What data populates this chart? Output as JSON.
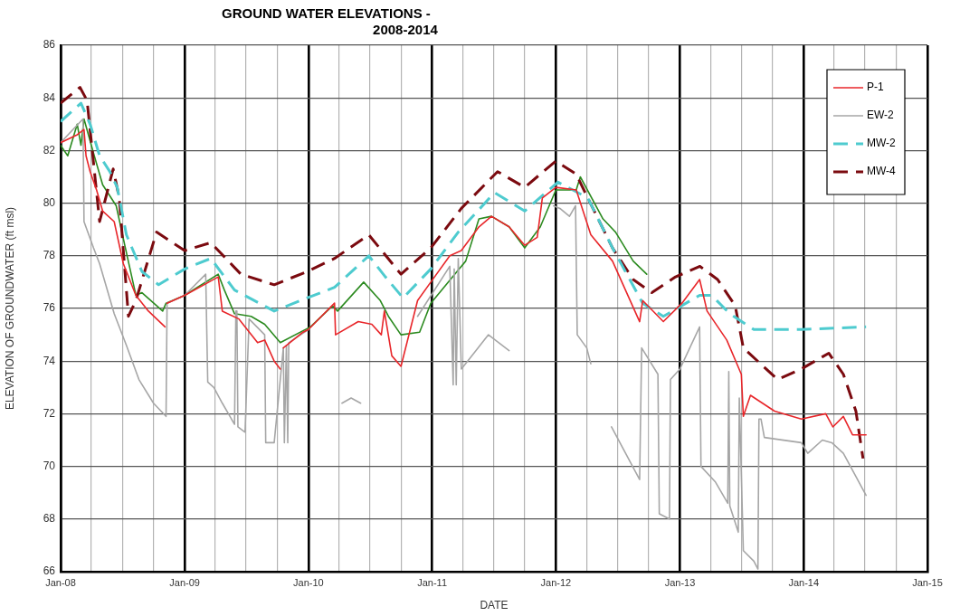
{
  "chart_data": {
    "type": "line",
    "title": "GROUND WATER ELEVATIONS -\n2008-2014",
    "xlabel": "DATE",
    "ylabel": "ELEVATION OF GROUNDWATER (ft msl)",
    "xlim": [
      "2008-01-01",
      "2015-01-01"
    ],
    "xticks": [
      {
        "value": "2008-01-01",
        "label": "Jan-08"
      },
      {
        "value": "2008-04-01",
        "label": null
      },
      {
        "value": "2008-07-01",
        "label": null
      },
      {
        "value": "2008-10-01",
        "label": null
      },
      {
        "value": "2009-01-01",
        "label": "Jan-09"
      },
      {
        "value": "2009-04-01",
        "label": null
      },
      {
        "value": "2009-07-01",
        "label": null
      },
      {
        "value": "2009-10-01",
        "label": null
      },
      {
        "value": "2010-01-01",
        "label": "Jan-10"
      },
      {
        "value": "2010-04-01",
        "label": null
      },
      {
        "value": "2010-07-01",
        "label": null
      },
      {
        "value": "2010-10-01",
        "label": null
      },
      {
        "value": "2011-01-01",
        "label": "Jan-11"
      },
      {
        "value": "2011-04-01",
        "label": null
      },
      {
        "value": "2011-07-01",
        "label": null
      },
      {
        "value": "2011-10-01",
        "label": null
      },
      {
        "value": "2012-01-01",
        "label": "Jan-12"
      },
      {
        "value": "2012-04-01",
        "label": null
      },
      {
        "value": "2012-07-01",
        "label": null
      },
      {
        "value": "2012-10-01",
        "label": null
      },
      {
        "value": "2013-01-01",
        "label": "Jan-13"
      },
      {
        "value": "2013-04-01",
        "label": null
      },
      {
        "value": "2013-07-01",
        "label": null
      },
      {
        "value": "2013-10-01",
        "label": null
      },
      {
        "value": "2014-01-01",
        "label": "Jan-14"
      },
      {
        "value": "2014-04-01",
        "label": null
      },
      {
        "value": "2014-07-01",
        "label": null
      },
      {
        "value": "2014-10-01",
        "label": null
      },
      {
        "value": "2015-01-01",
        "label": "Jan-15"
      }
    ],
    "ylim": [
      66,
      86
    ],
    "yticks": [
      66,
      68,
      70,
      72,
      74,
      76,
      78,
      80,
      82,
      84,
      86
    ],
    "grid": true,
    "legend": "top right",
    "series": [
      {
        "name": "P-1",
        "color": "#e8262a",
        "line_style": "solid",
        "x": [
          "2008-01-01",
          "2008-02-19",
          "2008-03-10",
          "2008-03-16",
          "2008-03-28",
          "2008-04-16",
          "2008-05-04",
          "2008-06-07",
          "2008-07-04",
          "2008-08-10",
          "2008-09-16",
          "2008-11-04",
          "2008-11-07",
          "2008-11-10",
          "2009-01-01",
          "2009-04-10",
          "2009-04-22",
          "2009-06-10",
          "2009-08-04",
          "2009-08-25",
          "2009-09-22",
          "2009-10-10",
          "2009-10-13",
          "2009-10-19",
          "2009-12-16",
          "2010-01-01",
          "2010-03-19",
          "2010-03-22",
          "2010-05-28",
          "2010-07-07",
          "2010-08-04",
          "2010-08-13",
          "2010-09-04",
          "2010-10-01",
          "2010-11-19",
          "2010-12-28",
          "2011-02-22",
          "2011-03-28",
          "2011-05-19",
          "2011-06-25",
          "2011-08-16",
          "2011-10-01",
          "2011-11-07",
          "2011-11-22",
          "2012-01-01",
          "2012-03-01",
          "2012-04-13",
          "2012-06-16",
          "2012-09-04",
          "2012-09-13",
          "2012-11-13",
          "2013-01-07",
          "2013-02-28",
          "2013-03-22",
          "2013-05-19",
          "2013-07-01",
          "2013-07-07",
          "2013-07-28",
          "2013-10-07",
          "2013-12-25",
          "2014-03-07",
          "2014-03-28",
          "2014-04-28",
          "2014-05-25",
          "2014-07-04"
        ],
        "values": [
          82.3,
          82.6,
          82.8,
          81.8,
          81.2,
          80.5,
          79.7,
          79.3,
          77.7,
          76.5,
          75.9,
          75.3,
          null,
          76.2,
          76.5,
          77.2,
          75.9,
          75.6,
          74.7,
          74.8,
          74.0,
          73.7,
          null,
          74.5,
          75.1,
          75.2,
          76.2,
          75.0,
          75.5,
          75.4,
          75.0,
          75.9,
          74.2,
          73.8,
          76.3,
          77.0,
          78.0,
          78.2,
          79.1,
          79.5,
          79.1,
          78.4,
          78.7,
          80.2,
          80.6,
          80.5,
          78.8,
          77.8,
          75.5,
          76.3,
          75.5,
          76.2,
          77.1,
          75.9,
          74.8,
          73.5,
          71.9,
          72.7,
          72.1,
          71.8,
          72.0,
          71.5,
          71.9,
          71.2,
          71.2
        ]
      },
      {
        "name": "EW-2",
        "color": "#a6a6a6",
        "line_style": "solid",
        "x": [
          "2008-01-01",
          "2008-03-07",
          "2008-03-10",
          "2008-04-07",
          "2008-04-25",
          "2008-06-07",
          "2008-07-13",
          "2008-08-19",
          "2008-10-01",
          "2008-11-07",
          "2008-11-10",
          "2009-01-01",
          "2009-03-04",
          "2009-03-10",
          "2009-03-28",
          "2009-04-22",
          "2009-05-28",
          "2009-06-01",
          "2009-06-04",
          "2009-06-07",
          "2009-06-28",
          "2009-07-10",
          "2009-08-25",
          "2009-08-28",
          "2009-09-22",
          "2009-10-19",
          "2009-10-22",
          "2009-10-28",
          "2009-11-01",
          "2009-11-04",
          "2010-01-01",
          "2010-01-10",
          "2010-02-01",
          "2010-04-10",
          "2010-05-07",
          "2010-06-04",
          "2010-07-01",
          "2010-11-19",
          "2011-02-22",
          "2011-03-04",
          "2011-03-07",
          "2011-03-13",
          "2011-03-19",
          "2011-03-28",
          "2011-04-22",
          "2011-06-16",
          "2011-08-16",
          "2011-10-01",
          "2011-12-25",
          "2012-01-13",
          "2012-02-10",
          "2012-02-28",
          "2012-03-04",
          "2012-04-01",
          "2012-04-13",
          "2012-05-01",
          "2012-06-13",
          "2012-09-04",
          "2012-09-10",
          "2012-10-28",
          "2012-11-01",
          "2012-12-01",
          "2012-12-04",
          "2013-01-01",
          "2013-02-28",
          "2013-03-04",
          "2013-04-16",
          "2013-05-22",
          "2013-05-25",
          "2013-05-28",
          "2013-06-22",
          "2013-06-25",
          "2013-07-07",
          "2013-08-07",
          "2013-08-19",
          "2013-08-22",
          "2013-08-28",
          "2013-09-07",
          "2013-12-25",
          "2014-01-13",
          "2014-02-25",
          "2014-03-25",
          "2014-04-28",
          "2014-07-04"
        ],
        "values": [
          82.3,
          83.2,
          79.3,
          78.3,
          77.7,
          75.8,
          74.6,
          73.3,
          72.4,
          71.9,
          76.2,
          76.5,
          77.3,
          73.2,
          73.0,
          72.4,
          71.6,
          75.9,
          75.9,
          71.5,
          71.3,
          75.6,
          75.0,
          70.9,
          70.9,
          74.5,
          70.9,
          74.6,
          70.9,
          74.7,
          75.2,
          null,
          null,
          72.4,
          72.6,
          72.4,
          null,
          75.7,
          77.6,
          73.1,
          77.5,
          73.1,
          77.9,
          73.7,
          74.1,
          75.0,
          74.4,
          null,
          79.9,
          79.8,
          79.5,
          79.9,
          75.0,
          74.5,
          73.9,
          null,
          71.5,
          69.5,
          74.5,
          73.5,
          68.2,
          68.0,
          73.3,
          73.7,
          75.3,
          70.0,
          69.4,
          68.6,
          73.6,
          68.5,
          67.5,
          72.6,
          66.8,
          66.4,
          66.1,
          71.8,
          71.8,
          71.1,
          70.9,
          70.5,
          71.0,
          70.9,
          70.5,
          68.9
        ]
      },
      {
        "name": "MW-2",
        "color": "#4ecbcf",
        "line_style": "dashed",
        "x": [
          "2008-01-01",
          "2008-03-01",
          "2008-03-28",
          "2008-04-25",
          "2008-05-25",
          "2008-06-16",
          "2008-07-13",
          "2008-08-28",
          "2008-10-16",
          "2009-01-01",
          "2009-03-19",
          "2009-05-28",
          "2009-09-22",
          "2009-12-28",
          "2010-03-19",
          "2010-06-28",
          "2010-08-16",
          "2010-10-07",
          "2010-12-28",
          "2011-03-19",
          "2011-07-04",
          "2011-10-01",
          "2012-01-07",
          "2012-04-04",
          "2012-06-16",
          "2012-09-13",
          "2012-11-13",
          "2013-02-28",
          "2013-04-04",
          "2013-05-28",
          "2013-08-07",
          "2013-12-25",
          "2014-07-04"
        ],
        "values": [
          83.1,
          83.8,
          83.0,
          81.8,
          81.2,
          80.6,
          78.8,
          77.4,
          76.9,
          77.5,
          77.9,
          76.7,
          75.9,
          76.4,
          76.8,
          78.0,
          77.2,
          76.4,
          77.5,
          78.9,
          80.4,
          79.7,
          80.8,
          80.2,
          78.3,
          76.2,
          75.7,
          76.5,
          76.5,
          75.8,
          75.2,
          75.2,
          75.3
        ]
      },
      {
        "name": "MW-4",
        "color": "#7b0a0f",
        "line_style": "dashed",
        "x": [
          "2008-01-01",
          "2008-02-27",
          "2008-03-19",
          "2008-04-25",
          "2008-06-04",
          "2008-06-22",
          "2008-07-19",
          "2008-08-10",
          "2008-10-10",
          "2009-01-01",
          "2009-03-19",
          "2009-06-16",
          "2009-09-22",
          "2009-12-28",
          "2010-03-19",
          "2010-06-28",
          "2010-10-01",
          "2010-12-28",
          "2011-03-28",
          "2011-07-13",
          "2011-10-01",
          "2012-01-01",
          "2012-03-01",
          "2012-04-04",
          "2012-06-16",
          "2012-08-16",
          "2012-10-10",
          "2012-12-19",
          "2013-03-01",
          "2013-04-22",
          "2013-06-13",
          "2013-07-07",
          "2013-10-16",
          "2013-12-25",
          "2014-03-16",
          "2014-04-28",
          "2014-06-04",
          "2014-06-25"
        ],
        "values": [
          83.8,
          84.4,
          83.9,
          79.3,
          81.3,
          80.2,
          75.7,
          76.3,
          78.9,
          78.2,
          78.5,
          77.3,
          76.9,
          77.4,
          77.9,
          78.8,
          77.3,
          78.3,
          79.8,
          81.2,
          80.6,
          81.6,
          81.1,
          80.2,
          78.3,
          77.1,
          76.6,
          77.2,
          77.6,
          77.1,
          76.1,
          74.5,
          73.3,
          73.7,
          74.3,
          73.5,
          72.1,
          70.3
        ]
      },
      {
        "color": "#2b8a1f",
        "line_style": "solid",
        "x": [
          "2008-01-01",
          "2008-01-22",
          "2008-02-19",
          "2008-03-01",
          "2008-03-10",
          "2008-04-07",
          "2008-05-04",
          "2008-06-13",
          "2008-07-10",
          "2008-08-10",
          "2008-08-28",
          "2008-10-28",
          "2008-11-07",
          "2009-01-01",
          "2009-04-10",
          "2009-04-28",
          "2009-05-28",
          "2009-07-16",
          "2009-08-25",
          "2009-10-10",
          "2010-01-07",
          "2010-03-13",
          "2010-03-28",
          "2010-06-13",
          "2010-08-01",
          "2010-08-25",
          "2010-10-01",
          "2010-11-25",
          "2010-12-28",
          "2011-04-10",
          "2011-05-19",
          "2011-06-25",
          "2011-08-16",
          "2011-10-01",
          "2011-11-16",
          "2012-01-01",
          "2012-03-01",
          "2012-03-13",
          "2012-05-19",
          "2012-06-25",
          "2012-08-16",
          "2012-09-25"
        ],
        "values": [
          82.2,
          81.8,
          83.0,
          82.2,
          83.2,
          81.9,
          80.7,
          79.9,
          78.3,
          76.5,
          76.6,
          75.9,
          76.2,
          76.5,
          77.3,
          76.7,
          75.8,
          75.7,
          75.4,
          74.7,
          75.3,
          76.1,
          75.9,
          77.0,
          76.3,
          75.7,
          75.0,
          75.1,
          76.2,
          77.8,
          79.4,
          79.5,
          79.1,
          78.3,
          79.1,
          80.5,
          80.5,
          81.0,
          79.4,
          78.9,
          77.8,
          77.3
        ]
      }
    ]
  }
}
